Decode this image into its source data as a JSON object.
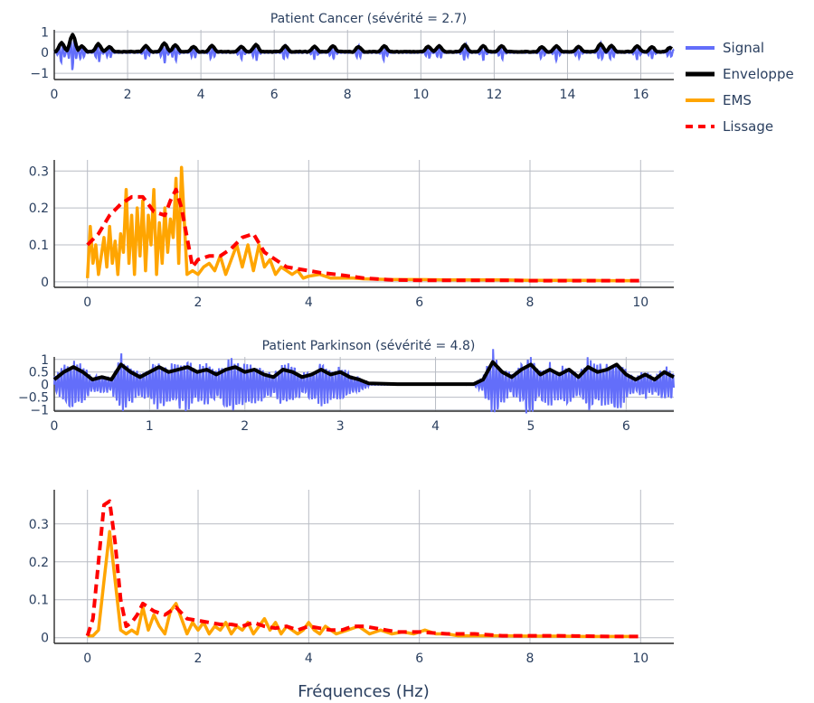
{
  "chart_data": [
    {
      "type": "line",
      "id": "cancer_signal",
      "title": "Patient Cancer (sévérité = 2.7)",
      "xlabel": "",
      "xlim": [
        0,
        16.9
      ],
      "ylim": [
        -1.3,
        1.1
      ],
      "xticks": [
        "0",
        "2",
        "4",
        "6",
        "8",
        "10",
        "12",
        "14",
        "16"
      ],
      "xtick_values": [
        0,
        2,
        4,
        6,
        8,
        10,
        12,
        14,
        16
      ],
      "yticks": [
        "1",
        "0",
        "−1"
      ],
      "ytick_values": [
        1,
        0,
        -1
      ],
      "bursts": [
        {
          "x": 0.2,
          "a": 0.5
        },
        {
          "x": 0.5,
          "a": 0.95
        },
        {
          "x": 0.75,
          "a": 0.35
        },
        {
          "x": 1.2,
          "a": 0.45
        },
        {
          "x": 1.5,
          "a": 0.3
        },
        {
          "x": 2.5,
          "a": 0.35
        },
        {
          "x": 3.0,
          "a": 0.5
        },
        {
          "x": 3.3,
          "a": 0.4
        },
        {
          "x": 3.8,
          "a": 0.3
        },
        {
          "x": 4.3,
          "a": 0.35
        },
        {
          "x": 5.1,
          "a": 0.3
        },
        {
          "x": 5.5,
          "a": 0.4
        },
        {
          "x": 6.3,
          "a": 0.35
        },
        {
          "x": 7.1,
          "a": 0.3
        },
        {
          "x": 7.6,
          "a": 0.35
        },
        {
          "x": 8.3,
          "a": 0.3
        },
        {
          "x": 9.0,
          "a": 0.35
        },
        {
          "x": 10.2,
          "a": 0.3
        },
        {
          "x": 10.5,
          "a": 0.35
        },
        {
          "x": 11.2,
          "a": 0.4
        },
        {
          "x": 11.7,
          "a": 0.35
        },
        {
          "x": 12.2,
          "a": 0.35
        },
        {
          "x": 13.3,
          "a": 0.3
        },
        {
          "x": 13.7,
          "a": 0.35
        },
        {
          "x": 14.3,
          "a": 0.3
        },
        {
          "x": 14.9,
          "a": 0.45
        },
        {
          "x": 15.2,
          "a": 0.35
        },
        {
          "x": 15.9,
          "a": 0.35
        },
        {
          "x": 16.3,
          "a": 0.3
        },
        {
          "x": 16.8,
          "a": 0.25
        }
      ]
    },
    {
      "type": "line",
      "id": "cancer_spectrum",
      "title": "",
      "xlim": [
        -0.6,
        10.6
      ],
      "ylim": [
        -0.015,
        0.33
      ],
      "xticks": [
        "0",
        "2",
        "4",
        "6",
        "8",
        "10"
      ],
      "xtick_values": [
        0,
        2,
        4,
        6,
        8,
        10
      ],
      "yticks": [
        "0",
        "0.1",
        "0.2",
        "0.3"
      ],
      "ytick_values": [
        0,
        0.1,
        0.2,
        0.3
      ],
      "series": [
        {
          "name": "EMS",
          "style": "solid",
          "x": [
            0,
            0.05,
            0.1,
            0.15,
            0.2,
            0.3,
            0.35,
            0.4,
            0.45,
            0.5,
            0.55,
            0.6,
            0.65,
            0.7,
            0.75,
            0.8,
            0.85,
            0.9,
            0.95,
            1.0,
            1.05,
            1.1,
            1.15,
            1.2,
            1.25,
            1.3,
            1.35,
            1.4,
            1.45,
            1.5,
            1.55,
            1.6,
            1.65,
            1.7,
            1.8,
            1.9,
            2.0,
            2.1,
            2.2,
            2.3,
            2.4,
            2.5,
            2.6,
            2.7,
            2.8,
            2.9,
            3.0,
            3.1,
            3.2,
            3.3,
            3.4,
            3.5,
            3.6,
            3.7,
            3.8,
            3.9,
            4.0,
            4.2,
            4.4,
            4.6,
            4.8,
            5.0,
            5.5,
            6.0,
            6.5,
            7.0,
            7.5,
            8.0,
            8.5,
            9.0,
            9.5,
            9.95
          ],
          "y": [
            0.01,
            0.15,
            0.05,
            0.1,
            0.02,
            0.12,
            0.04,
            0.15,
            0.05,
            0.11,
            0.02,
            0.13,
            0.08,
            0.25,
            0.05,
            0.18,
            0.02,
            0.2,
            0.07,
            0.22,
            0.03,
            0.18,
            0.1,
            0.25,
            0.02,
            0.16,
            0.05,
            0.2,
            0.08,
            0.17,
            0.12,
            0.28,
            0.05,
            0.31,
            0.02,
            0.03,
            0.02,
            0.04,
            0.05,
            0.03,
            0.07,
            0.02,
            0.06,
            0.1,
            0.04,
            0.1,
            0.03,
            0.1,
            0.04,
            0.06,
            0.02,
            0.04,
            0.03,
            0.02,
            0.03,
            0.01,
            0.015,
            0.02,
            0.01,
            0.01,
            0.01,
            0.008,
            0.006,
            0.006,
            0.005,
            0.005,
            0.005,
            0.004,
            0.004,
            0.004,
            0.003,
            0.003
          ]
        },
        {
          "name": "Lissage",
          "style": "dash",
          "x": [
            0,
            0.2,
            0.4,
            0.6,
            0.8,
            1.0,
            1.2,
            1.4,
            1.5,
            1.6,
            1.7,
            1.8,
            1.9,
            2.0,
            2.2,
            2.4,
            2.6,
            2.8,
            3.0,
            3.2,
            3.4,
            3.6,
            3.8,
            4.0,
            4.2,
            4.5,
            5.0,
            5.5,
            6.0,
            6.5,
            7.0,
            7.5,
            8.0,
            8.5,
            9.0,
            9.5,
            10.0
          ],
          "y": [
            0.1,
            0.13,
            0.18,
            0.21,
            0.23,
            0.23,
            0.19,
            0.18,
            0.22,
            0.25,
            0.2,
            0.12,
            0.04,
            0.06,
            0.07,
            0.07,
            0.09,
            0.12,
            0.13,
            0.08,
            0.06,
            0.04,
            0.035,
            0.03,
            0.025,
            0.02,
            0.01,
            0.005,
            0.004,
            0.004,
            0.004,
            0.004,
            0.003,
            0.003,
            0.003,
            0.003,
            0.003
          ]
        }
      ]
    },
    {
      "type": "line",
      "id": "parkinson_signal",
      "title": "Patient Parkinson (sévérité = 4.8)",
      "xlim": [
        0,
        6.5
      ],
      "ylim": [
        -1.05,
        1.1
      ],
      "xticks": [
        "0",
        "1",
        "2",
        "3",
        "4",
        "5",
        "6"
      ],
      "xtick_values": [
        0,
        1,
        2,
        3,
        4,
        5,
        6
      ],
      "yticks": [
        "1",
        "0.5",
        "0",
        "−0.5",
        "−1"
      ],
      "ytick_values": [
        1,
        0.5,
        0,
        -0.5,
        -1
      ],
      "active_segments": [
        [
          0,
          3.3
        ],
        [
          4.4,
          6.5
        ]
      ],
      "envelope": [
        [
          0,
          0.2
        ],
        [
          0.1,
          0.5
        ],
        [
          0.2,
          0.7
        ],
        [
          0.3,
          0.5
        ],
        [
          0.4,
          0.2
        ],
        [
          0.5,
          0.3
        ],
        [
          0.6,
          0.2
        ],
        [
          0.7,
          0.8
        ],
        [
          0.8,
          0.5
        ],
        [
          0.9,
          0.3
        ],
        [
          1.0,
          0.5
        ],
        [
          1.1,
          0.7
        ],
        [
          1.2,
          0.5
        ],
        [
          1.3,
          0.6
        ],
        [
          1.4,
          0.7
        ],
        [
          1.5,
          0.5
        ],
        [
          1.6,
          0.6
        ],
        [
          1.7,
          0.4
        ],
        [
          1.8,
          0.6
        ],
        [
          1.9,
          0.7
        ],
        [
          2.0,
          0.5
        ],
        [
          2.1,
          0.6
        ],
        [
          2.2,
          0.4
        ],
        [
          2.3,
          0.3
        ],
        [
          2.4,
          0.6
        ],
        [
          2.5,
          0.5
        ],
        [
          2.6,
          0.3
        ],
        [
          2.7,
          0.4
        ],
        [
          2.8,
          0.6
        ],
        [
          2.9,
          0.4
        ],
        [
          3.0,
          0.5
        ],
        [
          3.1,
          0.3
        ],
        [
          3.2,
          0.2
        ],
        [
          3.3,
          0.05
        ],
        [
          3.6,
          0.02
        ],
        [
          4.0,
          0.02
        ],
        [
          4.4,
          0.02
        ],
        [
          4.5,
          0.2
        ],
        [
          4.6,
          0.9
        ],
        [
          4.7,
          0.5
        ],
        [
          4.8,
          0.3
        ],
        [
          4.9,
          0.6
        ],
        [
          5.0,
          0.8
        ],
        [
          5.1,
          0.4
        ],
        [
          5.2,
          0.6
        ],
        [
          5.3,
          0.4
        ],
        [
          5.4,
          0.6
        ],
        [
          5.5,
          0.3
        ],
        [
          5.6,
          0.7
        ],
        [
          5.7,
          0.5
        ],
        [
          5.8,
          0.6
        ],
        [
          5.9,
          0.8
        ],
        [
          6.0,
          0.4
        ],
        [
          6.1,
          0.2
        ],
        [
          6.2,
          0.4
        ],
        [
          6.3,
          0.2
        ],
        [
          6.4,
          0.5
        ],
        [
          6.5,
          0.3
        ]
      ]
    },
    {
      "type": "line",
      "id": "parkinson_spectrum",
      "title": "",
      "xlabel": "Fréquences (Hz)",
      "xlim": [
        -0.6,
        10.6
      ],
      "ylim": [
        -0.015,
        0.39
      ],
      "xticks": [
        "0",
        "2",
        "4",
        "6",
        "8",
        "10"
      ],
      "xtick_values": [
        0,
        2,
        4,
        6,
        8,
        10
      ],
      "yticks": [
        "0",
        "0.1",
        "0.2",
        "0.3"
      ],
      "ytick_values": [
        0,
        0.1,
        0.2,
        0.3
      ],
      "series": [
        {
          "name": "EMS",
          "style": "solid",
          "x": [
            0,
            0.1,
            0.2,
            0.3,
            0.4,
            0.5,
            0.6,
            0.7,
            0.8,
            0.9,
            1.0,
            1.1,
            1.2,
            1.3,
            1.4,
            1.5,
            1.6,
            1.7,
            1.8,
            1.9,
            2.0,
            2.1,
            2.2,
            2.3,
            2.4,
            2.5,
            2.6,
            2.7,
            2.8,
            2.9,
            3.0,
            3.1,
            3.2,
            3.3,
            3.4,
            3.5,
            3.6,
            3.7,
            3.8,
            3.9,
            4.0,
            4.1,
            4.2,
            4.3,
            4.5,
            4.7,
            4.9,
            5.1,
            5.3,
            5.5,
            5.7,
            5.9,
            6.1,
            6.3,
            6.5,
            6.7,
            7.0,
            7.5,
            8.0,
            8.5,
            9.0,
            9.5,
            9.95
          ],
          "y": [
            0.005,
            0.005,
            0.02,
            0.15,
            0.28,
            0.15,
            0.02,
            0.01,
            0.02,
            0.01,
            0.08,
            0.02,
            0.06,
            0.03,
            0.01,
            0.07,
            0.09,
            0.05,
            0.01,
            0.04,
            0.02,
            0.04,
            0.01,
            0.03,
            0.02,
            0.04,
            0.01,
            0.03,
            0.02,
            0.04,
            0.01,
            0.03,
            0.05,
            0.02,
            0.04,
            0.01,
            0.03,
            0.02,
            0.01,
            0.02,
            0.04,
            0.02,
            0.01,
            0.03,
            0.01,
            0.02,
            0.03,
            0.01,
            0.02,
            0.01,
            0.015,
            0.01,
            0.02,
            0.01,
            0.01,
            0.005,
            0.005,
            0.005,
            0.004,
            0.004,
            0.003,
            0.003,
            0.003
          ]
        },
        {
          "name": "Lissage",
          "style": "dash",
          "x": [
            0,
            0.1,
            0.2,
            0.3,
            0.4,
            0.5,
            0.6,
            0.7,
            0.8,
            0.9,
            1.0,
            1.2,
            1.4,
            1.6,
            1.8,
            2.0,
            2.2,
            2.4,
            2.6,
            2.8,
            3.0,
            3.2,
            3.4,
            3.6,
            3.8,
            4.0,
            4.2,
            4.4,
            4.6,
            4.8,
            5.0,
            5.2,
            5.4,
            5.6,
            5.8,
            6.0,
            6.5,
            7.0,
            7.5,
            8.0,
            8.5,
            9.0,
            9.5,
            10.0
          ],
          "y": [
            0.005,
            0.05,
            0.2,
            0.35,
            0.36,
            0.25,
            0.1,
            0.03,
            0.04,
            0.06,
            0.09,
            0.07,
            0.06,
            0.08,
            0.05,
            0.045,
            0.04,
            0.035,
            0.035,
            0.03,
            0.04,
            0.03,
            0.025,
            0.03,
            0.02,
            0.03,
            0.025,
            0.02,
            0.02,
            0.03,
            0.03,
            0.025,
            0.02,
            0.015,
            0.015,
            0.015,
            0.01,
            0.01,
            0.005,
            0.005,
            0.005,
            0.004,
            0.003,
            0.003
          ]
        }
      ]
    }
  ],
  "legend": {
    "placement": "top-right",
    "items": [
      {
        "label": "Signal",
        "color": "#636efa",
        "style": "solid"
      },
      {
        "label": "Enveloppe",
        "color": "#000000",
        "style": "solid"
      },
      {
        "label": "EMS",
        "color": "#ffa500",
        "style": "solid"
      },
      {
        "label": "Lissage",
        "color": "#ff0000",
        "style": "dash"
      }
    ]
  },
  "colors": {
    "signal": "#636efa",
    "envelope": "#000000",
    "ems": "#ffa500",
    "smooth": "#ff0000",
    "text": "#2a3f5f"
  }
}
